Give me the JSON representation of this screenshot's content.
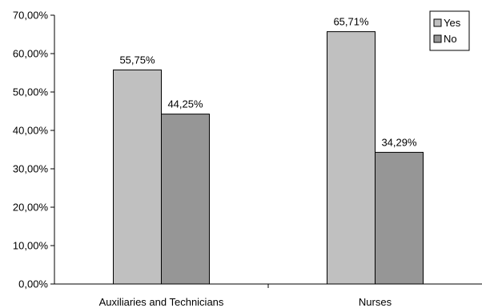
{
  "chart_data": {
    "type": "bar",
    "title": "",
    "xlabel": "",
    "ylabel": "",
    "categories": [
      "Auxiliaries and Technicians",
      "Nurses"
    ],
    "series": [
      {
        "name": "Yes",
        "values": [
          55.75,
          65.71
        ],
        "labels": [
          "55,75%",
          "65,71%"
        ],
        "color": "#c0c0c0"
      },
      {
        "name": "No",
        "values": [
          44.25,
          34.29
        ],
        "labels": [
          "44,25%",
          "34,29%"
        ],
        "color": "#969696"
      }
    ],
    "ylim": [
      0,
      70
    ],
    "yticks": [
      0,
      10,
      20,
      30,
      40,
      50,
      60,
      70
    ],
    "ytick_labels": [
      "0,00%",
      "10,00%",
      "20,00%",
      "30,00%",
      "40,00%",
      "50,00%",
      "60,00%",
      "70,00%"
    ],
    "grid": false,
    "legend": "top-right"
  }
}
